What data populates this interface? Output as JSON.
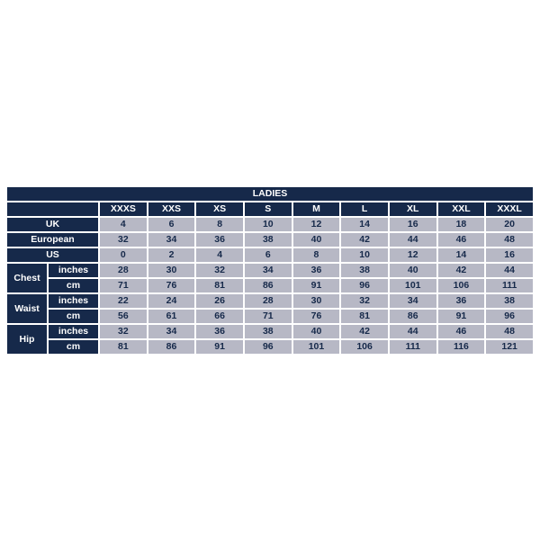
{
  "chart_data": {
    "type": "table",
    "title": "LADIES",
    "columns": [
      "XXXS",
      "XXS",
      "XS",
      "S",
      "M",
      "L",
      "XL",
      "XXL",
      "XXXL"
    ],
    "rows": [
      {
        "label": "UK",
        "values": [
          "4",
          "6",
          "8",
          "10",
          "12",
          "14",
          "16",
          "18",
          "20"
        ]
      },
      {
        "label": "European",
        "values": [
          "32",
          "34",
          "36",
          "38",
          "40",
          "42",
          "44",
          "46",
          "48"
        ]
      },
      {
        "label": "US",
        "values": [
          "0",
          "2",
          "4",
          "6",
          "8",
          "10",
          "12",
          "14",
          "16"
        ]
      },
      {
        "label": "Chest",
        "unit": "inches",
        "values": [
          "28",
          "30",
          "32",
          "34",
          "36",
          "38",
          "40",
          "42",
          "44"
        ]
      },
      {
        "label": "Chest",
        "unit": "cm",
        "values": [
          "71",
          "76",
          "81",
          "86",
          "91",
          "96",
          "101",
          "106",
          "111"
        ]
      },
      {
        "label": "Waist",
        "unit": "inches",
        "values": [
          "22",
          "24",
          "26",
          "28",
          "30",
          "32",
          "34",
          "36",
          "38"
        ]
      },
      {
        "label": "Waist",
        "unit": "cm",
        "values": [
          "56",
          "61",
          "66",
          "71",
          "76",
          "81",
          "86",
          "91",
          "96"
        ]
      },
      {
        "label": "Hip",
        "unit": "inches",
        "values": [
          "32",
          "34",
          "36",
          "38",
          "40",
          "42",
          "44",
          "46",
          "48"
        ]
      },
      {
        "label": "Hip",
        "unit": "cm",
        "values": [
          "81",
          "86",
          "91",
          "96",
          "101",
          "106",
          "111",
          "116",
          "121"
        ]
      }
    ],
    "layout": {
      "legend_position": "none",
      "grid": "white 2px gaps between cells",
      "header_rows_merged": "Chest/Waist/Hip labels span their inches+cm rows; UK/European/US labels span two left columns; title spans full width"
    },
    "colors": {
      "header_navy": "#16294a",
      "cell_background": "#b7b8c5",
      "grid_white": "#ffffff",
      "page_background": "#ffffff"
    }
  }
}
